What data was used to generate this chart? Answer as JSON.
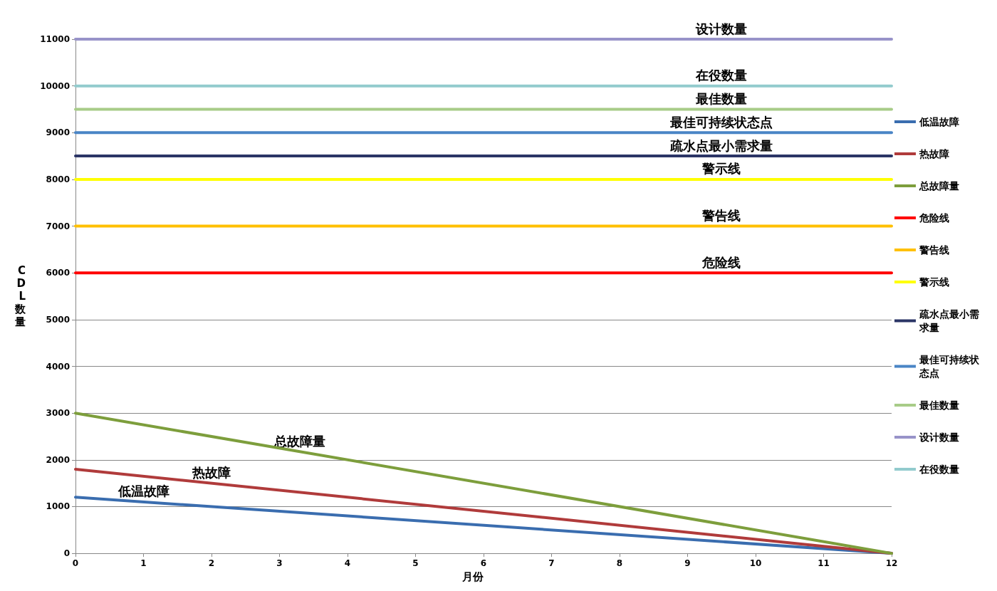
{
  "chart_data": {
    "type": "line",
    "xlabel": "月份",
    "ylabel": "CDL数量",
    "x": [
      0,
      12
    ],
    "xlim": [
      0,
      12
    ],
    "xticks": [
      0,
      1,
      2,
      3,
      4,
      5,
      6,
      7,
      8,
      9,
      10,
      11,
      12
    ],
    "ylim": [
      0,
      11000
    ],
    "yticks": [
      0,
      1000,
      2000,
      3000,
      4000,
      5000,
      6000,
      7000,
      8000,
      9000,
      10000,
      11000
    ],
    "grid": "y",
    "legend": "right",
    "marker": "none",
    "line_style": "solid",
    "series": [
      {
        "name": "低温故障",
        "color": "#3a6daf",
        "values": [
          1200,
          0
        ]
      },
      {
        "name": "热故障",
        "color": "#b03b3b",
        "values": [
          1800,
          0
        ]
      },
      {
        "name": "总故障量",
        "color": "#7d9e3c",
        "values": [
          3000,
          0
        ]
      },
      {
        "name": "危险线",
        "color": "#ff0000",
        "values": [
          6000,
          6000
        ]
      },
      {
        "name": "警告线",
        "color": "#ffc000",
        "values": [
          7000,
          7000
        ]
      },
      {
        "name": "警示线",
        "color": "#ffff00",
        "values": [
          8000,
          8000
        ]
      },
      {
        "name": "疏水点最小需求量",
        "color": "#2b3566",
        "values": [
          8500,
          8500
        ]
      },
      {
        "name": "最佳可持续状态点",
        "color": "#4a85c6",
        "values": [
          9000,
          9000
        ]
      },
      {
        "name": "最佳数量",
        "color": "#a8cc88",
        "values": [
          9500,
          9500
        ]
      },
      {
        "name": "设计数量",
        "color": "#9893c9",
        "values": [
          11000,
          11000
        ]
      },
      {
        "name": "在役数量",
        "color": "#92cbcd",
        "values": [
          10000,
          10000
        ]
      }
    ],
    "annotations": [
      {
        "text": "设计数量",
        "x": 9.5,
        "y": 11000
      },
      {
        "text": "在役数量",
        "x": 9.5,
        "y": 10000
      },
      {
        "text": "最佳数量",
        "x": 9.5,
        "y": 9500
      },
      {
        "text": "最佳可持续状态点",
        "x": 9.5,
        "y": 9000
      },
      {
        "text": "疏水点最小需求量",
        "x": 9.5,
        "y": 8500
      },
      {
        "text": "警示线",
        "x": 9.5,
        "y": 8000
      },
      {
        "text": "警告线",
        "x": 9.5,
        "y": 7000
      },
      {
        "text": "危险线",
        "x": 9.5,
        "y": 6000
      },
      {
        "text": "总故障量",
        "x": 3.3,
        "y": 2175
      },
      {
        "text": "热故障",
        "x": 2,
        "y": 1500
      },
      {
        "text": "低温故障",
        "x": 1,
        "y": 1100
      }
    ]
  }
}
